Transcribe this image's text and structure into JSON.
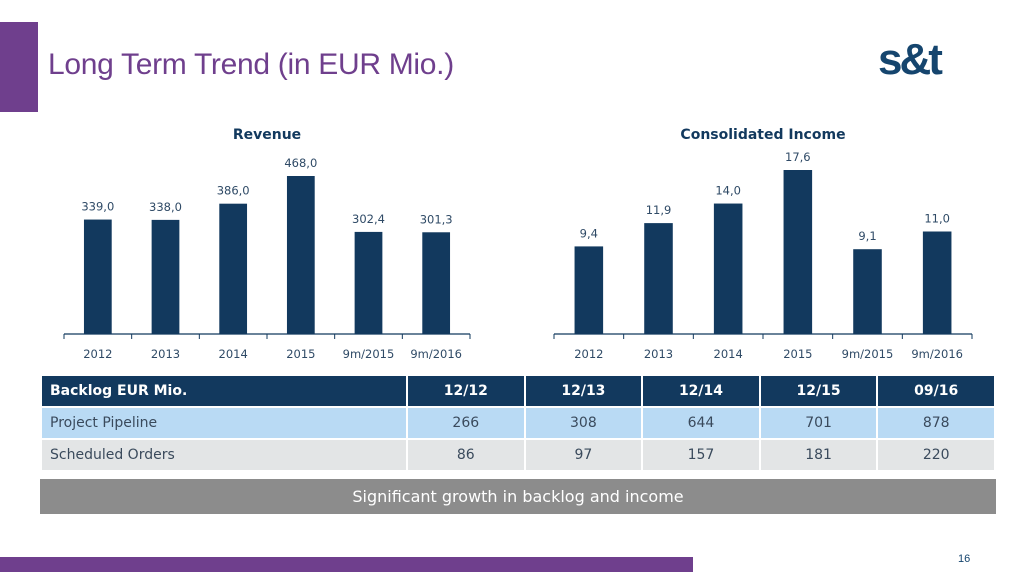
{
  "header": {
    "title": "Long Term Trend (in EUR Mio.)",
    "logo": "s&t"
  },
  "chart_data": [
    {
      "type": "bar",
      "title": "Revenue",
      "categories": [
        "2012",
        "2013",
        "2014",
        "2015",
        "9m/2015",
        "9m/2016"
      ],
      "values": [
        339.0,
        338.0,
        386.0,
        468.0,
        302.4,
        301.3
      ],
      "labels": [
        "339,0",
        "338,0",
        "386,0",
        "468,0",
        "302,4",
        "301,3"
      ],
      "xlabel": "",
      "ylabel": "",
      "ylim": [
        0,
        500
      ],
      "color": "#12395e"
    },
    {
      "type": "bar",
      "title": "Consolidated Income",
      "categories": [
        "2012",
        "2013",
        "2014",
        "2015",
        "9m/2015",
        "9m/2016"
      ],
      "values": [
        9.4,
        11.9,
        14.0,
        17.6,
        9.1,
        11.0
      ],
      "labels": [
        "9,4",
        "11,9",
        "14,0",
        "17,6",
        "9,1",
        "11,0"
      ],
      "xlabel": "",
      "ylabel": "",
      "ylim": [
        0,
        19
      ],
      "color": "#12395e"
    }
  ],
  "table": {
    "header": [
      "Backlog EUR Mio.",
      "12/12",
      "12/13",
      "12/14",
      "12/15",
      "09/16"
    ],
    "rows": [
      [
        "Project Pipeline",
        "266",
        "308",
        "644",
        "701",
        "878"
      ],
      [
        "Scheduled Orders",
        "86",
        "97",
        "157",
        "181",
        "220"
      ]
    ]
  },
  "banner": "Significant growth in backlog and income",
  "page_number": "16"
}
